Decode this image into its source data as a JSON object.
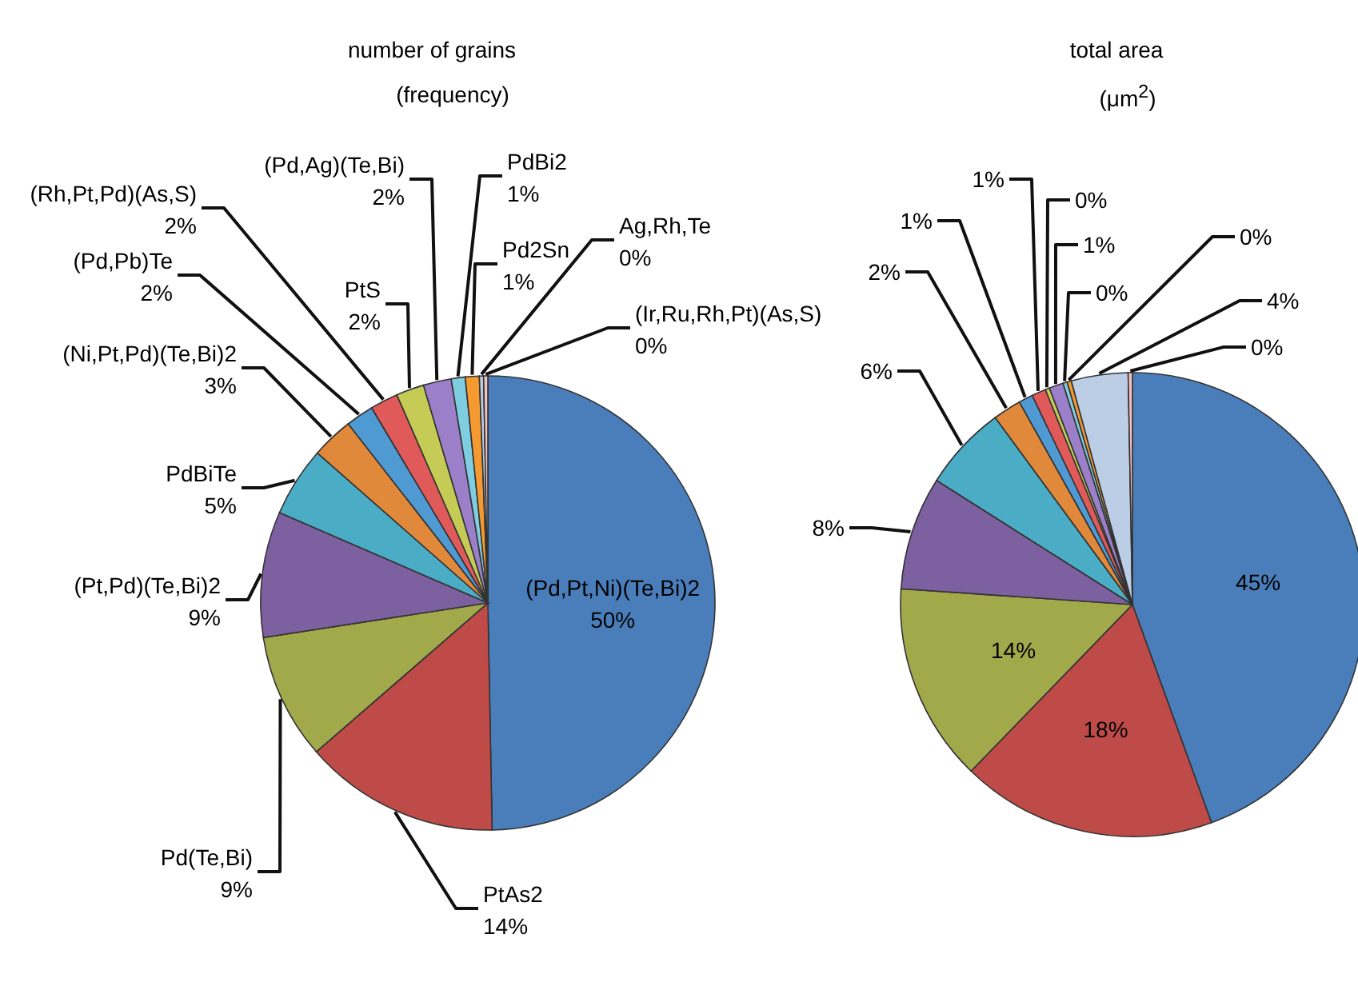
{
  "chart_data": [
    {
      "type": "pie",
      "title": "number of grains",
      "subtitle": "(frequency)",
      "categories": [
        "(Pd,Pt,Ni)(Te,Bi)2",
        "PtAs2",
        "Pd(Te,Bi)",
        "(Pt,Pd)(Te,Bi)2",
        "PdBiTe",
        "(Ni,Pt,Pd)(Te,Bi)2",
        "(Pd,Pb)Te",
        "(Rh,Pt,Pd)(As,S)",
        "PtS",
        "(Pd,Ag)(Te,Bi)",
        "PdBi2",
        "Pd2Sn",
        "Ag,Rh,Te",
        "(Ir,Ru,Rh,Pt)(As,S)"
      ],
      "values": [
        50,
        14,
        9,
        9,
        5,
        3,
        2,
        2,
        2,
        2,
        1,
        1,
        0.3,
        0.3
      ],
      "value_labels": [
        "50%",
        "14%",
        "9%",
        "9%",
        "5%",
        "3%",
        "2%",
        "2%",
        "2%",
        "2%",
        "1%",
        "1%",
        "0%",
        "0%"
      ],
      "colors": [
        "#4a7ebb",
        "#be4b48",
        "#a2a94a",
        "#7d60a0",
        "#4bacc6",
        "#e0893a",
        "#4f9ad2",
        "#e05a5a",
        "#c5cc55",
        "#9b7fc9",
        "#7ecde0",
        "#f59a30",
        "#bccde6",
        "#f4c0c0"
      ]
    },
    {
      "type": "pie",
      "title": "total area",
      "subtitle": "(μm$^{2}$)",
      "categories": [
        null,
        null,
        null,
        null,
        null,
        null,
        null,
        null,
        null,
        null,
        null,
        null,
        null,
        null
      ],
      "values": [
        45,
        18,
        14,
        8,
        6,
        2,
        1,
        1,
        0.3,
        1,
        0.3,
        0.3,
        4,
        0.3
      ],
      "value_labels": [
        "45%",
        "18%",
        "14%",
        "8%",
        "6%",
        "2%",
        "1%",
        "1%",
        "0%",
        "1%",
        "0%",
        "0%",
        "4%",
        "0%"
      ],
      "colors": [
        "#4a7ebb",
        "#be4b48",
        "#a2a94a",
        "#7d60a0",
        "#4bacc6",
        "#e0893a",
        "#4f9ad2",
        "#e05a5a",
        "#c5cc55",
        "#9b7fc9",
        "#7ecde0",
        "#f59a30",
        "#bccde6",
        "#f4c0c0"
      ]
    }
  ]
}
